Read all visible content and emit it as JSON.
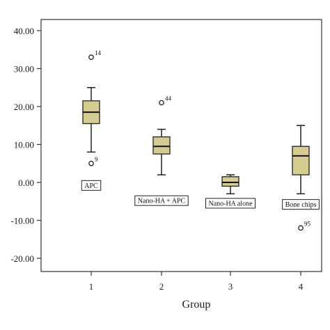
{
  "chart_data": {
    "type": "boxplot",
    "xlabel": "Group",
    "ylabel": "",
    "ylim": [
      -24,
      43
    ],
    "yticks": [
      40,
      30,
      20,
      10,
      0,
      -10,
      -20
    ],
    "ytick_labels": [
      "40.00",
      "30.00",
      "20.00",
      "10.00",
      "0.00",
      "-10.00",
      "-20.00"
    ],
    "categories": [
      "1",
      "2",
      "3",
      "4"
    ],
    "grid": false,
    "box_color": "#d6cc8f",
    "boxes": [
      {
        "category": "1",
        "label": "APC",
        "label_y": -0.8,
        "whisker_low": 8,
        "q1": 15.5,
        "median": 18.5,
        "q3": 21.5,
        "whisker_high": 25,
        "outliers": [
          {
            "value": 33,
            "label": "14"
          },
          {
            "value": 5,
            "label": "9"
          }
        ]
      },
      {
        "category": "2",
        "label": "Nano-HA + APC",
        "label_y": -4.8,
        "whisker_low": 2,
        "q1": 7.5,
        "median": 9.5,
        "q3": 12,
        "whisker_high": 14,
        "outliers": [
          {
            "value": 21,
            "label": "44"
          }
        ]
      },
      {
        "category": "3",
        "label": "Nano-HA alone",
        "label_y": -5.5,
        "whisker_low": -3,
        "q1": -1,
        "median": 0,
        "q3": 1.5,
        "whisker_high": 2,
        "outliers": []
      },
      {
        "category": "4",
        "label": "Bone chips",
        "label_y": -5.8,
        "whisker_low": -3,
        "q1": 2,
        "median": 7,
        "q3": 9.5,
        "whisker_high": 15,
        "outliers": [
          {
            "value": -12,
            "label": "95"
          }
        ]
      }
    ]
  }
}
